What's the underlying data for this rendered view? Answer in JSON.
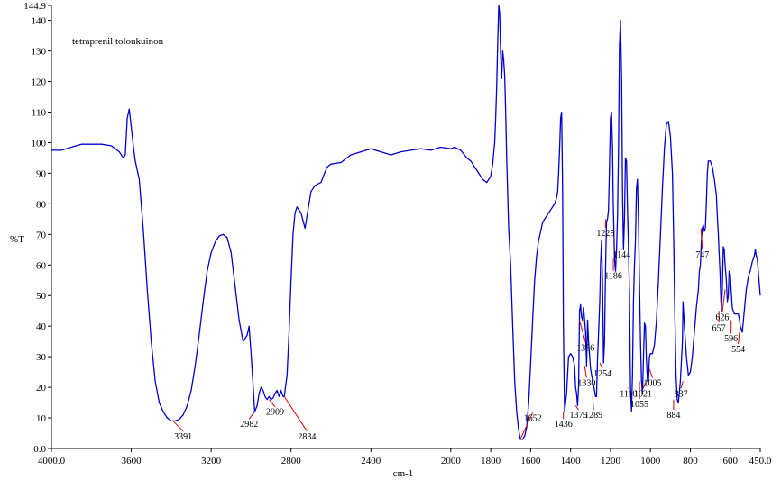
{
  "chart_data": {
    "type": "line",
    "title": "tetraprenil toloukuinon",
    "xlabel": "cm-1",
    "ylabel": "%T",
    "xlim": [
      4000,
      450
    ],
    "ylim": [
      0,
      144.9
    ],
    "x_ticks": [
      {
        "value": 4000,
        "label": "4000.0"
      },
      {
        "value": 3600,
        "label": "3600"
      },
      {
        "value": 3200,
        "label": "3200"
      },
      {
        "value": 2800,
        "label": "2800"
      },
      {
        "value": 2400,
        "label": "2400"
      },
      {
        "value": 2000,
        "label": "2000"
      },
      {
        "value": 1800,
        "label": "1800"
      },
      {
        "value": 1600,
        "label": "1600"
      },
      {
        "value": 1400,
        "label": "1400"
      },
      {
        "value": 1200,
        "label": "1200"
      },
      {
        "value": 1000,
        "label": "1000"
      },
      {
        "value": 800,
        "label": "800"
      },
      {
        "value": 600,
        "label": "600"
      },
      {
        "value": 450,
        "label": "450.0"
      }
    ],
    "y_ticks": [
      {
        "value": 0,
        "label": "0.0"
      },
      {
        "value": 10,
        "label": "10"
      },
      {
        "value": 20,
        "label": "20"
      },
      {
        "value": 30,
        "label": "30"
      },
      {
        "value": 40,
        "label": "40"
      },
      {
        "value": 50,
        "label": "50"
      },
      {
        "value": 60,
        "label": "60"
      },
      {
        "value": 70,
        "label": "70"
      },
      {
        "value": 80,
        "label": "80"
      },
      {
        "value": 90,
        "label": "90"
      },
      {
        "value": 100,
        "label": "100"
      },
      {
        "value": 110,
        "label": "110"
      },
      {
        "value": 120,
        "label": "120"
      },
      {
        "value": 130,
        "label": "130"
      },
      {
        "value": 140,
        "label": "140"
      },
      {
        "value": 144.9,
        "label": "144.9"
      }
    ],
    "line_color": "#0000cc",
    "annotation_color": "#cc0000",
    "series": [
      {
        "x": [
          4000,
          3950,
          3900,
          3850,
          3800,
          3750,
          3700,
          3660,
          3640,
          3630,
          3620,
          3610,
          3600,
          3590,
          3580,
          3560,
          3540,
          3520,
          3500,
          3480,
          3460,
          3440,
          3420,
          3400,
          3380,
          3360,
          3340,
          3320,
          3300,
          3280,
          3260,
          3240,
          3220,
          3200,
          3180,
          3160,
          3140,
          3120,
          3100,
          3080,
          3060,
          3040,
          3020,
          3010,
          3000,
          2990,
          2982,
          2970,
          2960,
          2950,
          2940,
          2930,
          2920,
          2910,
          2900,
          2890,
          2880,
          2870,
          2860,
          2850,
          2840,
          2834,
          2820,
          2810,
          2800,
          2790,
          2780,
          2770,
          2750,
          2730,
          2700,
          2680,
          2650,
          2620,
          2600,
          2550,
          2500,
          2450,
          2400,
          2350,
          2300,
          2250,
          2200,
          2150,
          2100,
          2050,
          2000,
          1980,
          1950,
          1920,
          1900,
          1880,
          1860,
          1840,
          1820,
          1800,
          1790,
          1780,
          1775,
          1770,
          1765,
          1760,
          1755,
          1750,
          1745,
          1740,
          1735,
          1730,
          1725,
          1720,
          1710,
          1700,
          1690,
          1680,
          1670,
          1660,
          1652,
          1640,
          1630,
          1620,
          1610,
          1600,
          1590,
          1580,
          1570,
          1560,
          1550,
          1540,
          1520,
          1500,
          1490,
          1480,
          1470,
          1465,
          1460,
          1455,
          1450,
          1445,
          1440,
          1436,
          1430,
          1420,
          1410,
          1400,
          1390,
          1380,
          1375,
          1370,
          1365,
          1360,
          1355,
          1350,
          1345,
          1340,
          1335,
          1330,
          1325,
          1320,
          1315,
          1310,
          1300,
          1289,
          1280,
          1275,
          1270,
          1265,
          1260,
          1254,
          1250,
          1245,
          1240,
          1235,
          1230,
          1225,
          1220,
          1215,
          1210,
          1205,
          1200,
          1195,
          1190,
          1186,
          1180,
          1175,
          1170,
          1165,
          1160,
          1155,
          1150,
          1144,
          1140,
          1135,
          1130,
          1125,
          1120,
          1115,
          1110,
          1105,
          1100,
          1095,
          1090,
          1085,
          1080,
          1075,
          1070,
          1065,
          1060,
          1055,
          1050,
          1045,
          1040,
          1035,
          1030,
          1025,
          1021,
          1015,
          1010,
          1005,
          1000,
          990,
          980,
          970,
          960,
          950,
          940,
          930,
          920,
          910,
          900,
          890,
          884,
          878,
          872,
          866,
          860,
          850,
          840,
          837,
          830,
          820,
          810,
          800,
          790,
          780,
          770,
          760,
          755,
          750,
          747,
          745,
          740,
          735,
          730,
          725,
          720,
          715,
          710,
          700,
          690,
          680,
          670,
          665,
          660,
          657,
          652,
          648,
          645,
          640,
          635,
          630,
          626,
          620,
          615,
          610,
          606,
          600,
          596,
          590,
          580,
          570,
          560,
          554,
          550,
          540,
          530,
          520,
          510,
          500,
          490,
          480,
          475,
          470,
          465,
          460,
          455,
          450
        ],
        "y": [
          97.5,
          97.5,
          98.5,
          99.5,
          99.5,
          99.5,
          99,
          97,
          95,
          96,
          108,
          111,
          105,
          99,
          94,
          88,
          72,
          52,
          35,
          22,
          15,
          12,
          10,
          9,
          9,
          9.5,
          11,
          14,
          19,
          27,
          37,
          48,
          58,
          64,
          67.5,
          69.5,
          70,
          69,
          64,
          53,
          42,
          35,
          37,
          40,
          31,
          21,
          12,
          14,
          18,
          20,
          19,
          17,
          16,
          17,
          16,
          16.5,
          18,
          19,
          17,
          19,
          17,
          17,
          24,
          38,
          55,
          70,
          77,
          79,
          77,
          72,
          84,
          86,
          87,
          92,
          93,
          93.5,
          96,
          97,
          98,
          97,
          96,
          97,
          97.5,
          98,
          97.5,
          98.5,
          98,
          98.5,
          97.5,
          95,
          94,
          92,
          90,
          88,
          87,
          89,
          93,
          100,
          108,
          118,
          132,
          145,
          142,
          128,
          121,
          130,
          127,
          122,
          110,
          95,
          72,
          60,
          40,
          22,
          12,
          6,
          3,
          3,
          4,
          7,
          15,
          28,
          42,
          55,
          63,
          68,
          71,
          74,
          76,
          78,
          79,
          80,
          82,
          84,
          90,
          98,
          108,
          110,
          85,
          40,
          12,
          18,
          30,
          31,
          30,
          27,
          20,
          18,
          14,
          20,
          45,
          47,
          43,
          42,
          46,
          42,
          38,
          27,
          42,
          35,
          26,
          22,
          19,
          17,
          17,
          30,
          38,
          48,
          60,
          68,
          54,
          28,
          35,
          58,
          74,
          75,
          78,
          92,
          108,
          110,
          98,
          80,
          62,
          58,
          65,
          76,
          98,
          132,
          140,
          120,
          85,
          65,
          75,
          95,
          94,
          78,
          65,
          50,
          20,
          12,
          24,
          48,
          60,
          68,
          85,
          88,
          75,
          55,
          35,
          22,
          18,
          30,
          41,
          40,
          30,
          22,
          22,
          30,
          31,
          31,
          34,
          42,
          55,
          70,
          85,
          98,
          106,
          107,
          102,
          90,
          70,
          45,
          24,
          16,
          15,
          22,
          35,
          48,
          40,
          30,
          24,
          25,
          30,
          38,
          46,
          52,
          58,
          60,
          64,
          68,
          72,
          73,
          71,
          72,
          80,
          90,
          94,
          94,
          92,
          88,
          83,
          76,
          70,
          65,
          58,
          50,
          45,
          52,
          66,
          65,
          60,
          55,
          48,
          50,
          58,
          57,
          52,
          46,
          44,
          44,
          44,
          42,
          40,
          38,
          45,
          52,
          56,
          58,
          61,
          63,
          65,
          63,
          62,
          58,
          54,
          50
        ]
      }
    ],
    "peaks": [
      {
        "x": 3391,
        "y": 9,
        "label": "3391",
        "label_x": 3340,
        "label_y": 3,
        "anchor": "middle"
      },
      {
        "x": 2982,
        "y": 12,
        "label": "2982",
        "label_x": 3010,
        "label_y": 7,
        "anchor": "middle"
      },
      {
        "x": 2909,
        "y": 16,
        "label": "2909",
        "label_x": 2880,
        "label_y": 11,
        "anchor": "middle"
      },
      {
        "x": 2834,
        "y": 17,
        "label": "2834",
        "label_x": 2720,
        "label_y": 3,
        "anchor": "middle"
      },
      {
        "x": 1652,
        "y": 3,
        "label": "1652",
        "label_x": 1590,
        "label_y": 9,
        "anchor": "middle"
      },
      {
        "x": 1436,
        "y": 12,
        "label": "1436",
        "label_x": 1436,
        "label_y": 7,
        "anchor": "middle"
      },
      {
        "x": 1375,
        "y": 14,
        "label": "1375",
        "label_x": 1360,
        "label_y": 10,
        "anchor": "middle"
      },
      {
        "x": 1356,
        "y": 42,
        "label": "1356",
        "label_x": 1325,
        "label_y": 32,
        "anchor": "middle"
      },
      {
        "x": 1330,
        "y": 27,
        "label": "1330",
        "label_x": 1320,
        "label_y": 20.5,
        "anchor": "middle"
      },
      {
        "x": 1289,
        "y": 17,
        "label": "1289",
        "label_x": 1285,
        "label_y": 10,
        "anchor": "middle"
      },
      {
        "x": 1254,
        "y": 28,
        "label": "1254",
        "label_x": 1240,
        "label_y": 23.5,
        "anchor": "middle"
      },
      {
        "x": 1225,
        "y": 75,
        "label": "1225",
        "label_x": 1225,
        "label_y": 69.5,
        "anchor": "middle"
      },
      {
        "x": 1186,
        "y": 62,
        "label": "1186",
        "label_x": 1186,
        "label_y": 55.5,
        "anchor": "middle"
      },
      {
        "x": 1144,
        "y": 65,
        "label": "1144",
        "label_x": 1144,
        "label_y": 62.5,
        "anchor": "middle"
      },
      {
        "x": 1110,
        "y": 20,
        "label": "1110",
        "label_x": 1110,
        "label_y": 17,
        "anchor": "middle"
      },
      {
        "x": 1055,
        "y": 22,
        "label": "1055",
        "label_x": 1055,
        "label_y": 13.5,
        "anchor": "middle"
      },
      {
        "x": 1021,
        "y": 22,
        "label": "1021",
        "label_x": 1037,
        "label_y": 17,
        "anchor": "middle"
      },
      {
        "x": 1005,
        "y": 26,
        "label": "1005",
        "label_x": 990,
        "label_y": 20.5,
        "anchor": "middle"
      },
      {
        "x": 884,
        "y": 16,
        "label": "884",
        "label_x": 884,
        "label_y": 10,
        "anchor": "middle"
      },
      {
        "x": 837,
        "y": 22,
        "label": "837",
        "label_x": 847,
        "label_y": 17,
        "anchor": "middle"
      },
      {
        "x": 747,
        "y": 72,
        "label": "747",
        "label_x": 740,
        "label_y": 62.5,
        "anchor": "middle"
      },
      {
        "x": 657,
        "y": 45,
        "label": "657",
        "label_x": 657,
        "label_y": 38.5,
        "anchor": "middle"
      },
      {
        "x": 626,
        "y": 52,
        "label": "626",
        "label_x": 640,
        "label_y": 42,
        "anchor": "middle"
      },
      {
        "x": 596,
        "y": 42,
        "label": "596",
        "label_x": 596,
        "label_y": 35,
        "anchor": "middle"
      },
      {
        "x": 554,
        "y": 38,
        "label": "554",
        "label_x": 560,
        "label_y": 31.5,
        "anchor": "middle"
      }
    ]
  }
}
